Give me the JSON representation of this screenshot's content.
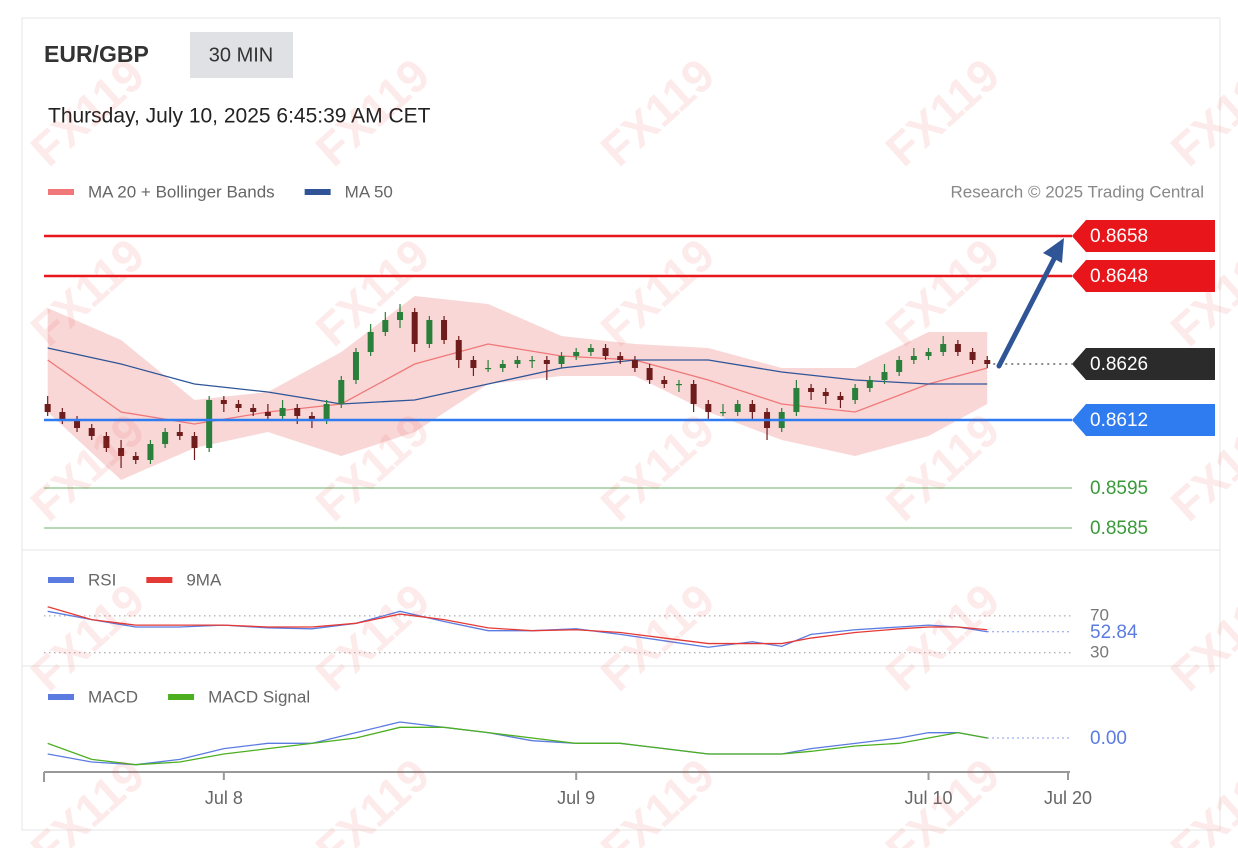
{
  "header": {
    "symbol": "EUR/GBP",
    "interval": "30 MIN",
    "timestamp": "Thursday, July 10, 2025 6:45:39 AM CET",
    "credit": "Research © 2025 Trading Central",
    "watermark": "FX119"
  },
  "chart_data": [
    {
      "type": "candlestick",
      "xlim": [
        -0.5,
        139
      ],
      "ylim": [
        0.858,
        0.866
      ],
      "up_color": "#2a7f3a",
      "down_color": "#6e1c1c",
      "x": [
        0,
        2,
        4,
        6,
        8,
        10,
        12,
        14,
        16,
        18,
        20,
        22,
        24,
        26,
        28,
        30,
        32,
        34,
        36,
        38,
        40,
        42,
        44,
        46,
        48,
        50,
        52,
        54,
        56,
        58,
        60,
        62,
        64,
        66,
        68,
        70,
        72,
        74,
        76,
        78,
        80,
        82,
        84,
        86,
        88,
        90,
        92,
        94,
        96,
        98,
        100,
        102,
        104,
        106,
        108,
        110,
        112,
        114,
        116,
        118,
        120,
        122,
        124,
        126,
        128
      ],
      "ohlc": [
        [
          0.8616,
          0.8618,
          0.8613,
          0.8614
        ],
        [
          0.8614,
          0.8615,
          0.8611,
          0.8612
        ],
        [
          0.8612,
          0.8613,
          0.8609,
          0.861
        ],
        [
          0.861,
          0.8611,
          0.8607,
          0.8608
        ],
        [
          0.8608,
          0.8609,
          0.8604,
          0.8605
        ],
        [
          0.8605,
          0.8607,
          0.86,
          0.8603
        ],
        [
          0.8603,
          0.8604,
          0.8601,
          0.8602
        ],
        [
          0.8602,
          0.8607,
          0.8601,
          0.8606
        ],
        [
          0.8606,
          0.861,
          0.8605,
          0.8609
        ],
        [
          0.8609,
          0.8611,
          0.8607,
          0.8608
        ],
        [
          0.8608,
          0.8609,
          0.8602,
          0.8605
        ],
        [
          0.8605,
          0.8618,
          0.8604,
          0.8617
        ],
        [
          0.8617,
          0.8618,
          0.8614,
          0.8616
        ],
        [
          0.8616,
          0.8617,
          0.8614,
          0.8615
        ],
        [
          0.8615,
          0.8616,
          0.8613,
          0.8614
        ],
        [
          0.8614,
          0.8616,
          0.8612,
          0.8613
        ],
        [
          0.8613,
          0.8617,
          0.8612,
          0.8615
        ],
        [
          0.8615,
          0.8616,
          0.8611,
          0.8613
        ],
        [
          0.8613,
          0.8614,
          0.861,
          0.8612
        ],
        [
          0.8612,
          0.8617,
          0.8611,
          0.8616
        ],
        [
          0.8616,
          0.8623,
          0.8615,
          0.8622
        ],
        [
          0.8622,
          0.863,
          0.8621,
          0.8629
        ],
        [
          0.8629,
          0.8636,
          0.8628,
          0.8634
        ],
        [
          0.8634,
          0.8639,
          0.8633,
          0.8637
        ],
        [
          0.8637,
          0.8641,
          0.8635,
          0.8639
        ],
        [
          0.8639,
          0.864,
          0.8629,
          0.8631
        ],
        [
          0.8631,
          0.8638,
          0.863,
          0.8637
        ],
        [
          0.8637,
          0.8638,
          0.8631,
          0.8632
        ],
        [
          0.8632,
          0.8633,
          0.8625,
          0.8627
        ],
        [
          0.8627,
          0.8628,
          0.8623,
          0.8625
        ],
        [
          0.8625,
          0.8627,
          0.8624,
          0.8625
        ],
        [
          0.8625,
          0.8627,
          0.8624,
          0.8626
        ],
        [
          0.8626,
          0.8628,
          0.8625,
          0.8627
        ],
        [
          0.8627,
          0.8628,
          0.8625,
          0.8627
        ],
        [
          0.8627,
          0.8628,
          0.8622,
          0.8626
        ],
        [
          0.8626,
          0.8629,
          0.8625,
          0.8628
        ],
        [
          0.8628,
          0.863,
          0.8627,
          0.8629
        ],
        [
          0.8629,
          0.8631,
          0.8628,
          0.863
        ],
        [
          0.863,
          0.8631,
          0.8627,
          0.8628
        ],
        [
          0.8628,
          0.8629,
          0.8626,
          0.8627
        ],
        [
          0.8627,
          0.8628,
          0.8624,
          0.8625
        ],
        [
          0.8625,
          0.8626,
          0.8621,
          0.8622
        ],
        [
          0.8622,
          0.8623,
          0.862,
          0.8621
        ],
        [
          0.8621,
          0.8622,
          0.8619,
          0.8621
        ],
        [
          0.8621,
          0.8622,
          0.8614,
          0.8616
        ],
        [
          0.8616,
          0.8617,
          0.8612,
          0.8614
        ],
        [
          0.8614,
          0.8616,
          0.8613,
          0.8614
        ],
        [
          0.8614,
          0.8617,
          0.8613,
          0.8616
        ],
        [
          0.8616,
          0.8617,
          0.8612,
          0.8614
        ],
        [
          0.8614,
          0.8615,
          0.8607,
          0.861
        ],
        [
          0.861,
          0.8615,
          0.8609,
          0.8614
        ],
        [
          0.8614,
          0.8622,
          0.8613,
          0.862
        ],
        [
          0.862,
          0.8621,
          0.8617,
          0.8619
        ],
        [
          0.8619,
          0.862,
          0.8616,
          0.8618
        ],
        [
          0.8618,
          0.8619,
          0.8615,
          0.8617
        ],
        [
          0.8617,
          0.8621,
          0.8616,
          0.862
        ],
        [
          0.862,
          0.8623,
          0.8619,
          0.8622
        ],
        [
          0.8622,
          0.8626,
          0.8621,
          0.8624
        ],
        [
          0.8624,
          0.8628,
          0.8623,
          0.8627
        ],
        [
          0.8627,
          0.863,
          0.8626,
          0.8628
        ],
        [
          0.8628,
          0.863,
          0.8627,
          0.8629
        ],
        [
          0.8629,
          0.8633,
          0.8628,
          0.8631
        ],
        [
          0.8631,
          0.8632,
          0.8628,
          0.8629
        ],
        [
          0.8629,
          0.863,
          0.8626,
          0.8627
        ],
        [
          0.8627,
          0.8628,
          0.8625,
          0.8626
        ]
      ],
      "band": {
        "color": "#f7c9c9",
        "x": [
          0,
          10,
          20,
          30,
          40,
          50,
          60,
          70,
          80,
          90,
          100,
          110,
          120,
          128
        ],
        "upper": [
          0.864,
          0.8632,
          0.8617,
          0.8619,
          0.8629,
          0.8643,
          0.8641,
          0.8633,
          0.8631,
          0.863,
          0.8625,
          0.8625,
          0.8634,
          0.8634
        ],
        "lower": [
          0.8614,
          0.8597,
          0.8605,
          0.8609,
          0.8603,
          0.8609,
          0.8621,
          0.8623,
          0.8623,
          0.8614,
          0.8607,
          0.8603,
          0.8608,
          0.8616
        ]
      },
      "lines": [
        {
          "name": "MA 20 + Bollinger Bands",
          "color": "#f07878",
          "x": [
            0,
            10,
            20,
            30,
            40,
            50,
            60,
            70,
            80,
            90,
            100,
            110,
            120,
            128
          ],
          "values": [
            0.8627,
            0.8614,
            0.8611,
            0.8614,
            0.8616,
            0.8626,
            0.8631,
            0.8628,
            0.8627,
            0.8622,
            0.8616,
            0.8614,
            0.8621,
            0.8625
          ]
        },
        {
          "name": "MA 50",
          "color": "#2f5597",
          "x": [
            0,
            10,
            20,
            30,
            40,
            50,
            60,
            70,
            80,
            90,
            100,
            110,
            120,
            128
          ],
          "values": [
            0.863,
            0.8626,
            0.8621,
            0.8619,
            0.8616,
            0.8617,
            0.8621,
            0.8625,
            0.8627,
            0.8627,
            0.8624,
            0.8622,
            0.8621,
            0.8621
          ]
        }
      ],
      "levels": [
        {
          "value": 0.8658,
          "color": "#e8151b",
          "line": "solid",
          "tag": true
        },
        {
          "value": 0.8648,
          "color": "#e8151b",
          "line": "solid",
          "tag": true
        },
        {
          "value": 0.8626,
          "color": "#2b2b2b",
          "line": "dotted",
          "tag": true
        },
        {
          "value": 0.8612,
          "color": "#2f7bf0",
          "line": "solid",
          "tag": true
        },
        {
          "value": 0.8595,
          "color": "#3a9a3a",
          "line": "solid",
          "tag": false
        },
        {
          "value": 0.8585,
          "color": "#3a9a3a",
          "line": "solid",
          "tag": false
        }
      ]
    },
    {
      "type": "line",
      "xlim": [
        -0.5,
        139
      ],
      "ylim": [
        20,
        90
      ],
      "yticks": [
        30,
        70
      ],
      "series": [
        {
          "name": "RSI",
          "color": "#5b7be0",
          "x": [
            0,
            6,
            12,
            18,
            24,
            30,
            36,
            42,
            48,
            54,
            60,
            66,
            72,
            78,
            84,
            90,
            96,
            100,
            104,
            110,
            116,
            120,
            124,
            128
          ],
          "values": [
            75,
            66,
            58,
            58,
            60,
            57,
            56,
            62,
            75,
            64,
            54,
            54,
            56,
            50,
            43,
            36,
            42,
            37,
            50,
            55,
            58,
            60,
            58,
            52.84
          ]
        },
        {
          "name": "9MA",
          "color": "#e53935",
          "x": [
            0,
            6,
            12,
            18,
            24,
            30,
            36,
            42,
            48,
            54,
            60,
            66,
            72,
            78,
            84,
            90,
            96,
            100,
            104,
            110,
            116,
            120,
            124,
            128
          ],
          "values": [
            80,
            66,
            60,
            60,
            60,
            58,
            58,
            62,
            72,
            66,
            57,
            54,
            55,
            52,
            46,
            40,
            40,
            40,
            46,
            52,
            56,
            58,
            58,
            55
          ]
        }
      ]
    },
    {
      "type": "line",
      "xlim": [
        -0.5,
        139
      ],
      "ylim": [
        -0.0006,
        0.0006
      ],
      "xticks": [
        {
          "value": 24,
          "label": "Jul 8"
        },
        {
          "value": 72,
          "label": "Jul 9"
        },
        {
          "value": 120,
          "label": "Jul 10"
        },
        {
          "value": 139,
          "label": "Jul 20"
        }
      ],
      "series": [
        {
          "name": "MACD",
          "color": "#5b7be0",
          "x": [
            0,
            6,
            12,
            18,
            24,
            30,
            36,
            42,
            48,
            54,
            60,
            66,
            72,
            78,
            84,
            90,
            96,
            100,
            104,
            110,
            116,
            120,
            124,
            128
          ],
          "values": [
            -0.0003,
            -0.00045,
            -0.0005,
            -0.0004,
            -0.0002,
            -0.0001,
            -0.0001,
            0.0001,
            0.0003,
            0.0002,
            0.0001,
            -5e-05,
            -0.0001,
            -0.0001,
            -0.0002,
            -0.0003,
            -0.0003,
            -0.0003,
            -0.0002,
            -0.0001,
            0,
            0.0001,
            0.0001,
            0
          ],
          "value_labels": [
            null,
            null,
            null,
            null,
            null,
            null,
            null,
            null,
            null,
            null,
            null,
            null,
            null,
            null,
            null,
            null,
            null,
            null,
            null,
            null,
            null,
            null,
            null,
            "0.00"
          ]
        },
        {
          "name": "MACD Signal",
          "color": "#4caf20",
          "x": [
            0,
            6,
            12,
            18,
            24,
            30,
            36,
            42,
            48,
            54,
            60,
            66,
            72,
            78,
            84,
            90,
            96,
            100,
            104,
            110,
            116,
            120,
            124,
            128
          ],
          "values": [
            -0.0001,
            -0.0004,
            -0.0005,
            -0.00045,
            -0.0003,
            -0.0002,
            -0.0001,
            0,
            0.0002,
            0.0002,
            0.0001,
            0,
            -0.0001,
            -0.0001,
            -0.0002,
            -0.0003,
            -0.0003,
            -0.0003,
            -0.00025,
            -0.00015,
            -0.0001,
            0,
            0.0001,
            0
          ]
        }
      ]
    }
  ]
}
